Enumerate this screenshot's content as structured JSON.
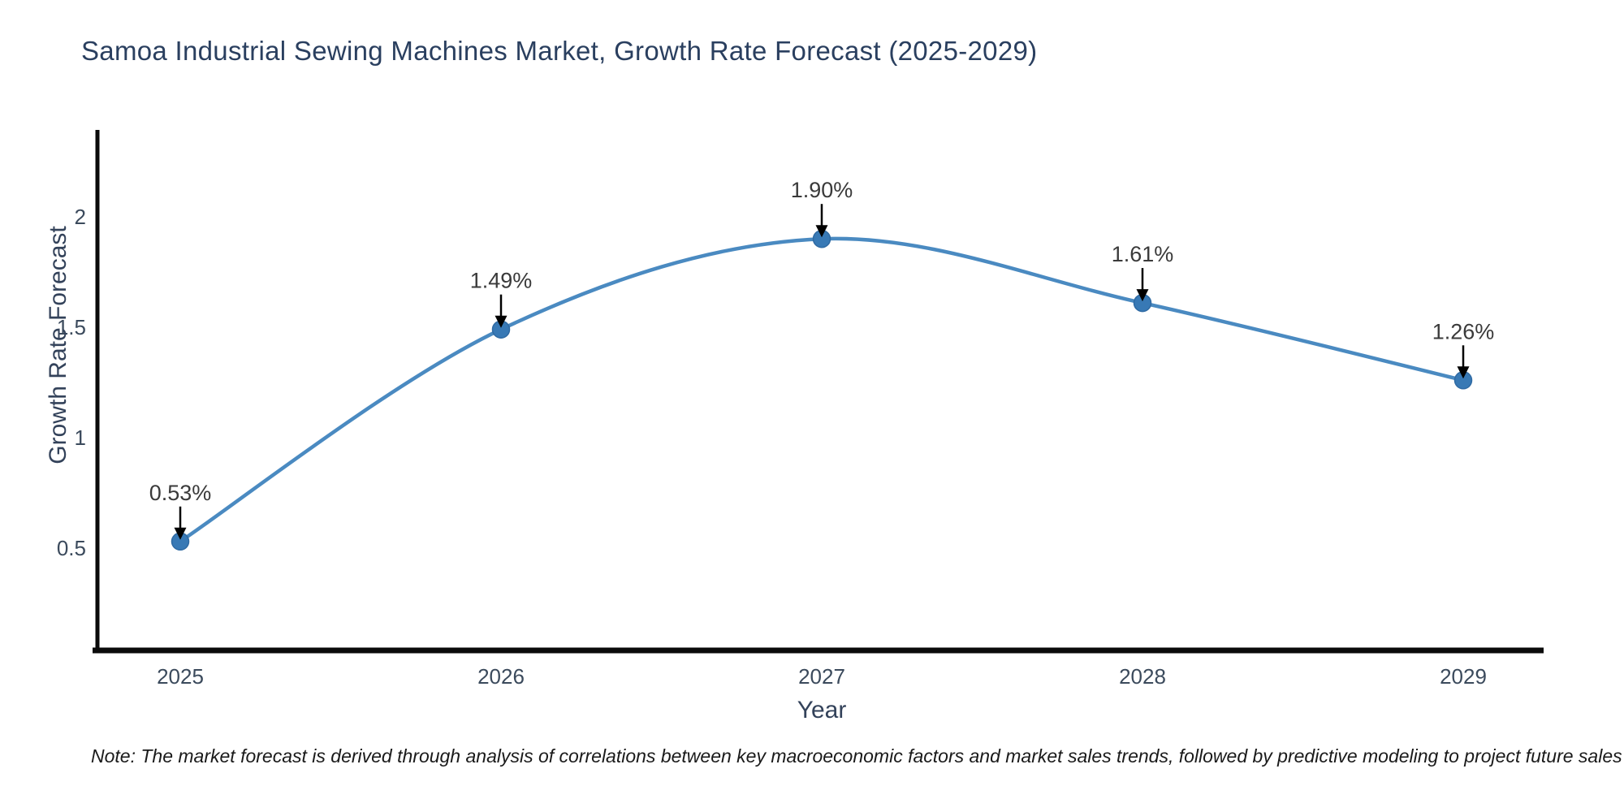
{
  "chart": {
    "title": "Samoa Industrial Sewing Machines Market, Growth Rate Forecast (2025-2029)",
    "note": "Note: The market forecast is derived through analysis of correlations between key macroeconomic factors and market sales trends, followed by predictive modeling to project future sales"
  },
  "chart_data": {
    "type": "line",
    "title": "Samoa Industrial Sewing Machines Market, Growth Rate Forecast (2025-2029)",
    "x": [
      2025,
      2026,
      2027,
      2028,
      2029
    ],
    "values": [
      0.53,
      1.49,
      1.9,
      1.61,
      1.26
    ],
    "series": [
      {
        "name": "Growth Rate Forecast",
        "values": [
          0.53,
          1.49,
          1.9,
          1.61,
          1.26
        ]
      }
    ],
    "point_labels": [
      "0.53%",
      "1.49%",
      "1.90%",
      "1.61%",
      "1.26%"
    ],
    "xlabel": "Year",
    "ylabel": "Growth Rate Forecast",
    "xtick_labels": [
      "2025",
      "2026",
      "2027",
      "2028",
      "2029"
    ],
    "yticks": [
      0.5,
      1,
      1.5,
      2
    ],
    "ytick_labels": [
      "0.5",
      "1",
      "1.5",
      "2"
    ],
    "ylim": [
      0.05,
      2.4
    ],
    "grid": false,
    "legend": false,
    "line_style": "spline",
    "annotation_style": "value-label-with-down-arrow"
  },
  "colors": {
    "background": "#ffffff",
    "title_text": "#2a3f5f",
    "axis_text": "#3b4a5c",
    "axis_line": "#0b0b0b",
    "line": "#4a8ac1",
    "marker": "#3879b5",
    "marker_edge": "#2f6aa3",
    "annotation_text": "#3a3a3a",
    "arrow": "#000000",
    "note_text": "#1a1a1a"
  }
}
